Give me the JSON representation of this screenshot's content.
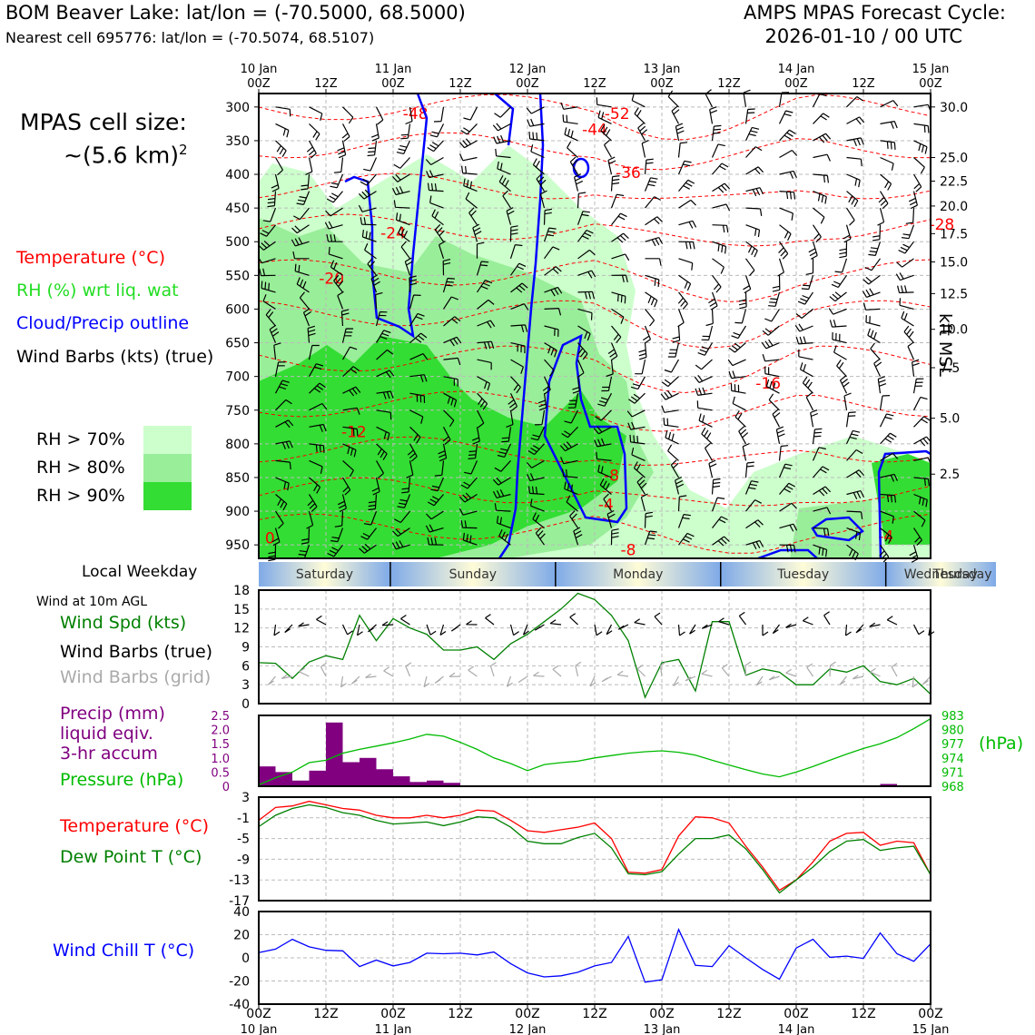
{
  "header": {
    "station": "BOM Beaver Lake: lat/lon = (-70.5000, 68.5000)",
    "nearest": "Nearest cell 695776: lat/lon = (-70.5074, 68.5107)",
    "cycle_line1": "AMPS MPAS Forecast Cycle:",
    "cycle_line2": "2026-01-10 / 00 UTC"
  },
  "legend": {
    "cell_size_label": "MPAS cell size:",
    "cell_size_value": "~(5.6 km)",
    "cell_size_exp": "2",
    "temperature": "Temperature (°C)",
    "rh": "RH (%) wrt liq. wat",
    "cloud": "Cloud/Precip outline",
    "barbs": "Wind Barbs (kts) (true)",
    "rh70": "RH > 70%",
    "rh80": "RH > 80%",
    "rh90": "RH > 90%",
    "local_weekday": "Local Weekday",
    "wind_10m": "Wind at 10m AGL",
    "wind_spd": "Wind Spd (kts)",
    "wind_barbs_true": "Wind Barbs (true)",
    "wind_barbs_grid": "Wind Barbs (grid)",
    "precip1": "Precip (mm)",
    "precip2": "liquid eqiv.",
    "precip3": "3-hr accum",
    "pressure": "Pressure (hPa)",
    "pressure_unit": "(hPa)",
    "temp2": "Temperature (°C)",
    "dewpoint": "Dew Point T (°C)",
    "windchill": "Wind Chill T (°C)",
    "kft": "kft MSL"
  },
  "colors": {
    "red": "#ff0000",
    "green_text": "#22dd22",
    "blue": "#0000ff",
    "purple": "#800080",
    "dark_green": "#008000",
    "pressure_green": "#00bb00",
    "rh70": "#ccffcc",
    "rh80": "#99ee99",
    "rh90": "#33dd33",
    "grey": "#aaaaaa"
  },
  "chart_data": {
    "type": "time-height cross section + meteogram",
    "time_ticks_top": [
      {
        "day": "10 Jan",
        "hour": "00Z"
      },
      {
        "day": "",
        "hour": "12Z"
      },
      {
        "day": "11 Jan",
        "hour": "00Z"
      },
      {
        "day": "",
        "hour": "12Z"
      },
      {
        "day": "12 Jan",
        "hour": "00Z"
      },
      {
        "day": "",
        "hour": "12Z"
      },
      {
        "day": "13 Jan",
        "hour": "00Z"
      },
      {
        "day": "",
        "hour": "12Z"
      },
      {
        "day": "14 Jan",
        "hour": "00Z"
      },
      {
        "day": "",
        "hour": "12Z"
      },
      {
        "day": "15 Jan",
        "hour": "00Z"
      }
    ],
    "time_ticks_bottom": [
      {
        "hour": "00Z",
        "day": "10 Jan"
      },
      {
        "hour": "12Z",
        "day": ""
      },
      {
        "hour": "00Z",
        "day": "11 Jan"
      },
      {
        "hour": "12Z",
        "day": ""
      },
      {
        "hour": "00Z",
        "day": "12 Jan"
      },
      {
        "hour": "12Z",
        "day": ""
      },
      {
        "hour": "00Z",
        "day": "13 Jan"
      },
      {
        "hour": "12Z",
        "day": ""
      },
      {
        "hour": "00Z",
        "day": "14 Jan"
      },
      {
        "hour": "12Z",
        "day": ""
      },
      {
        "hour": "00Z",
        "day": "15 Jan"
      }
    ],
    "cross_section": {
      "pressure_range_hPa": [
        970,
        300
      ],
      "pressure_ticks": [
        "300",
        "350",
        "400",
        "450",
        "500",
        "550",
        "600",
        "650",
        "700",
        "750",
        "800",
        "850",
        "900",
        "950"
      ],
      "height_ticks_kft": [
        "30.0",
        "25.0",
        "22.5",
        "20.0",
        "17.5",
        "15.0",
        "12.5",
        "10.0",
        "7.5",
        "5.0",
        "2.5"
      ],
      "height_ticks_pressure": [
        300,
        375,
        410,
        447,
        488,
        530,
        577,
        630,
        687,
        762,
        845
      ],
      "temperature_labels": [
        {
          "t": -48,
          "p": 318,
          "text": "-48"
        },
        {
          "t": -52,
          "p": 318,
          "text": "-52"
        },
        {
          "t": -52,
          "p": 318,
          "text": "-52"
        },
        {
          "t": -44,
          "p": 341,
          "text": "-44"
        },
        {
          "t": -40,
          "p": 368,
          "text": "-40"
        },
        {
          "t": -36,
          "p": 405,
          "text": "-36"
        },
        {
          "t": -32,
          "p": 437,
          "text": "-32"
        },
        {
          "t": -28,
          "p": 482,
          "text": "-28"
        },
        {
          "t": -24,
          "p": 495,
          "text": "-24"
        },
        {
          "t": -20,
          "p": 562,
          "text": "-20"
        },
        {
          "t": -16,
          "p": 718,
          "text": "-16"
        },
        {
          "t": -12,
          "p": 790,
          "text": "-12"
        },
        {
          "t": -8,
          "p": 855,
          "text": "-8"
        },
        {
          "t": -4,
          "p": 898,
          "text": "-4"
        },
        {
          "t": -4,
          "p": 945,
          "text": "-4"
        },
        {
          "t": -8,
          "p": 928,
          "text": "-8"
        },
        {
          "t": -4,
          "p": 960,
          "text": "-4"
        },
        {
          "t": 0,
          "p": 948,
          "text": "0"
        },
        {
          "t": -8,
          "p": 965,
          "text": "-8"
        }
      ],
      "temperature_label_times_h": [
        28,
        64,
        172,
        60,
        142,
        66,
        186,
        122,
        24,
        13,
        91,
        17,
        63,
        62,
        112,
        150,
        163,
        2,
        66
      ]
    },
    "weekdays": [
      "Saturday",
      "Sunday",
      "Monday",
      "Tuesday",
      "Wednesday",
      "Thursday"
    ],
    "wind_speed": {
      "ylim": [
        0,
        18
      ],
      "yticks": [
        "0",
        "3",
        "6",
        "9",
        "12",
        "15",
        "18"
      ],
      "times_h": [
        0,
        3,
        6,
        9,
        12,
        15,
        18,
        21,
        24,
        27,
        30,
        33,
        36,
        39,
        42,
        45,
        48,
        51,
        54,
        57,
        60,
        63,
        66,
        69,
        72,
        75,
        78,
        81,
        84,
        87,
        90,
        93,
        96,
        99,
        102,
        105,
        108,
        111,
        114,
        117,
        120
      ],
      "values": [
        6.5,
        6.4,
        4.0,
        6.6,
        7.6,
        7.0,
        14.0,
        10.0,
        13.5,
        12.0,
        11.0,
        8.5,
        8.5,
        9.0,
        7.0,
        9.5,
        11.0,
        13.0,
        15.0,
        17.5,
        16.5,
        14.0,
        10.0,
        1.0,
        6.5,
        7.0,
        2.0,
        13.0,
        13.0,
        4.5,
        5.5,
        5.0,
        3.0,
        3.0,
        5.5,
        5.0,
        6.0,
        3.5,
        3.0,
        4.0,
        1.5
      ]
    },
    "precip_pressure": {
      "precip_ylim": [
        0,
        2.5
      ],
      "precip_ticks": [
        "0",
        "0.5",
        "1.0",
        "1.5",
        "2.0",
        "2.5"
      ],
      "precip_bars": [
        {
          "t": 3,
          "v": 0.7
        },
        {
          "t": 6,
          "v": 0.5
        },
        {
          "t": 9,
          "v": 0.2
        },
        {
          "t": 12,
          "v": 0.55
        },
        {
          "t": 15,
          "v": 2.25
        },
        {
          "t": 18,
          "v": 0.85
        },
        {
          "t": 21,
          "v": 1.0
        },
        {
          "t": 24,
          "v": 0.6
        },
        {
          "t": 27,
          "v": 0.35
        },
        {
          "t": 30,
          "v": 0.15
        },
        {
          "t": 33,
          "v": 0.2
        },
        {
          "t": 36,
          "v": 0.12
        },
        {
          "t": 114,
          "v": 0.08
        }
      ],
      "pressure_ylim": [
        968,
        983
      ],
      "pressure_ticks": [
        "968",
        "971",
        "974",
        "977",
        "980",
        "983"
      ],
      "times_h": [
        0,
        3,
        6,
        9,
        12,
        15,
        18,
        21,
        24,
        27,
        30,
        33,
        36,
        39,
        42,
        45,
        48,
        51,
        54,
        57,
        60,
        63,
        66,
        69,
        72,
        75,
        78,
        81,
        84,
        87,
        90,
        93,
        96,
        99,
        102,
        105,
        108,
        111,
        114,
        117,
        120
      ],
      "pressure": [
        968.3,
        969.8,
        971.0,
        973.0,
        973.5,
        975.0,
        975.8,
        976.5,
        977.2,
        978.0,
        979.0,
        978.6,
        977.3,
        975.8,
        974.0,
        972.8,
        971.3,
        972.6,
        973.0,
        973.3,
        974.0,
        974.5,
        975.0,
        975.3,
        975.5,
        975.2,
        974.6,
        973.5,
        972.5,
        971.5,
        970.6,
        970.0,
        971.0,
        972.2,
        973.5,
        974.8,
        976.0,
        977.0,
        978.3,
        980.2,
        982.3
      ]
    },
    "temperature": {
      "ylim": [
        -17,
        3
      ],
      "yticks": [
        "3",
        "-1",
        "-5",
        "-9",
        "-13",
        "-17"
      ],
      "times_h": [
        0,
        3,
        6,
        9,
        12,
        15,
        18,
        21,
        24,
        27,
        30,
        33,
        36,
        39,
        42,
        45,
        48,
        51,
        54,
        57,
        60,
        63,
        66,
        69,
        72,
        75,
        78,
        81,
        84,
        87,
        90,
        93,
        96,
        99,
        102,
        105,
        108,
        111,
        114,
        117,
        120
      ],
      "temp": [
        -1.5,
        1.0,
        1.3,
        2.2,
        1.5,
        0.8,
        0.5,
        -0.5,
        -1.0,
        -1.0,
        -0.5,
        -1.0,
        -0.5,
        0.5,
        0.3,
        -1.5,
        -3.5,
        -3.8,
        -3.3,
        -2.8,
        -2.0,
        -5.0,
        -11.5,
        -11.7,
        -11.0,
        -4.5,
        -0.8,
        -1.0,
        -2.0,
        -6.5,
        -10.5,
        -15.0,
        -13.0,
        -9.5,
        -5.5,
        -4.0,
        -3.8,
        -6.3,
        -5.5,
        -5.8,
        -12.0
      ],
      "dewpoint": [
        -2.7,
        -0.5,
        0.8,
        1.5,
        1.0,
        0.0,
        -0.5,
        -1.5,
        -2.2,
        -2.0,
        -1.8,
        -2.5,
        -1.8,
        -0.8,
        -1.0,
        -2.8,
        -5.5,
        -6.0,
        -6.0,
        -4.8,
        -4.0,
        -6.8,
        -11.8,
        -12.0,
        -11.4,
        -8.0,
        -5.0,
        -5.0,
        -4.3,
        -7.0,
        -11.0,
        -15.5,
        -13.0,
        -10.5,
        -7.5,
        -5.5,
        -5.2,
        -7.3,
        -6.8,
        -6.5,
        -12.0
      ]
    },
    "wind_chill": {
      "ylim": [
        -40,
        40
      ],
      "yticks": [
        "40",
        "20",
        "0",
        "-20",
        "-40"
      ],
      "times_h": [
        0,
        3,
        6,
        9,
        12,
        15,
        18,
        21,
        24,
        27,
        30,
        33,
        36,
        39,
        42,
        45,
        48,
        51,
        54,
        57,
        60,
        63,
        66,
        69,
        72,
        75,
        78,
        81,
        84,
        87,
        90,
        93,
        96,
        99,
        102,
        105,
        108,
        111,
        114,
        117,
        120
      ],
      "values": [
        4.5,
        7.5,
        16.0,
        9.5,
        6.5,
        6.0,
        -7.5,
        -2.0,
        -7.0,
        -4.0,
        4.0,
        3.5,
        4.0,
        2.5,
        5.0,
        -5.0,
        -13.0,
        -16.5,
        -15.5,
        -12.5,
        -7.0,
        -4.0,
        18.5,
        -21.0,
        -19.0,
        24.5,
        -6.5,
        -7.5,
        10.5,
        0.0,
        -10.0,
        -18.5,
        8.5,
        16.0,
        0.5,
        1.5,
        -0.5,
        21.5,
        3.5,
        -3.0,
        12.0
      ]
    }
  }
}
